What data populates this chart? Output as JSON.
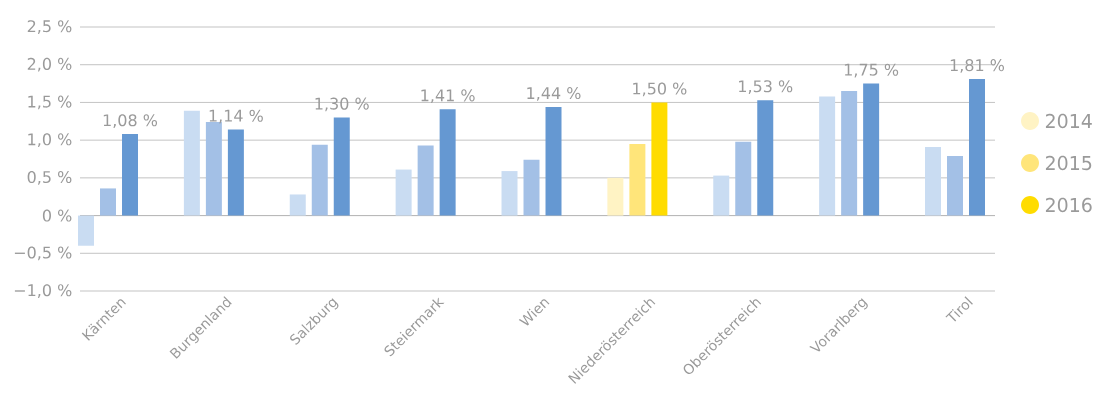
{
  "chart_data": {
    "type": "bar",
    "categories": [
      "Kärnten",
      "Burgenland",
      "Salzburg",
      "Steiermark",
      "Wien",
      "Niederösterreich",
      "Oberösterreich",
      "Vorarlberg",
      "Tirol"
    ],
    "series": [
      {
        "name": "2014",
        "color": "#fff3c4",
        "colors": [
          "#c9dcf2",
          "#c9dcf2",
          "#c9dcf2",
          "#c9dcf2",
          "#c9dcf2",
          "#fff3c4",
          "#c9dcf2",
          "#c9dcf2",
          "#c9dcf2"
        ],
        "values": [
          -0.4,
          1.39,
          0.28,
          0.61,
          0.59,
          0.5,
          0.53,
          1.58,
          0.91
        ]
      },
      {
        "name": "2015",
        "color": "#ffe57a",
        "colors": [
          "#a3c0e6",
          "#a3c0e6",
          "#a3c0e6",
          "#a3c0e6",
          "#a3c0e6",
          "#ffe57a",
          "#a3c0e6",
          "#a3c0e6",
          "#a3c0e6"
        ],
        "values": [
          0.36,
          1.24,
          0.94,
          0.93,
          0.74,
          0.95,
          0.98,
          1.65,
          0.79
        ]
      },
      {
        "name": "2016",
        "color": "#ffdc00",
        "colors": [
          "#6598d2",
          "#6598d2",
          "#6598d2",
          "#6598d2",
          "#6598d2",
          "#ffdc00",
          "#6598d2",
          "#6598d2",
          "#6598d2"
        ],
        "values": [
          1.08,
          1.14,
          1.3,
          1.41,
          1.44,
          1.5,
          1.53,
          1.75,
          1.81
        ],
        "value_labels": [
          "1,08 %",
          "1,14 %",
          "1,30 %",
          "1,41 %",
          "1,44 %",
          "1,50 %",
          "1,53 %",
          "1,75 %",
          "1,81 %"
        ]
      }
    ],
    "ylim": [
      -1.0,
      2.5
    ],
    "yticks": [
      {
        "value": -1.0,
        "label": "−1,0 %"
      },
      {
        "value": -0.5,
        "label": "−0,5 %"
      },
      {
        "value": 0,
        "label": "0 %"
      },
      {
        "value": 0.5,
        "label": "0,5 %"
      },
      {
        "value": 1.0,
        "label": "1,0 %"
      },
      {
        "value": 1.5,
        "label": "1,5 %"
      },
      {
        "value": 2.0,
        "label": "2,0 %"
      },
      {
        "value": 2.5,
        "label": "2,5 %"
      }
    ],
    "grid": "y",
    "legend": "right"
  }
}
